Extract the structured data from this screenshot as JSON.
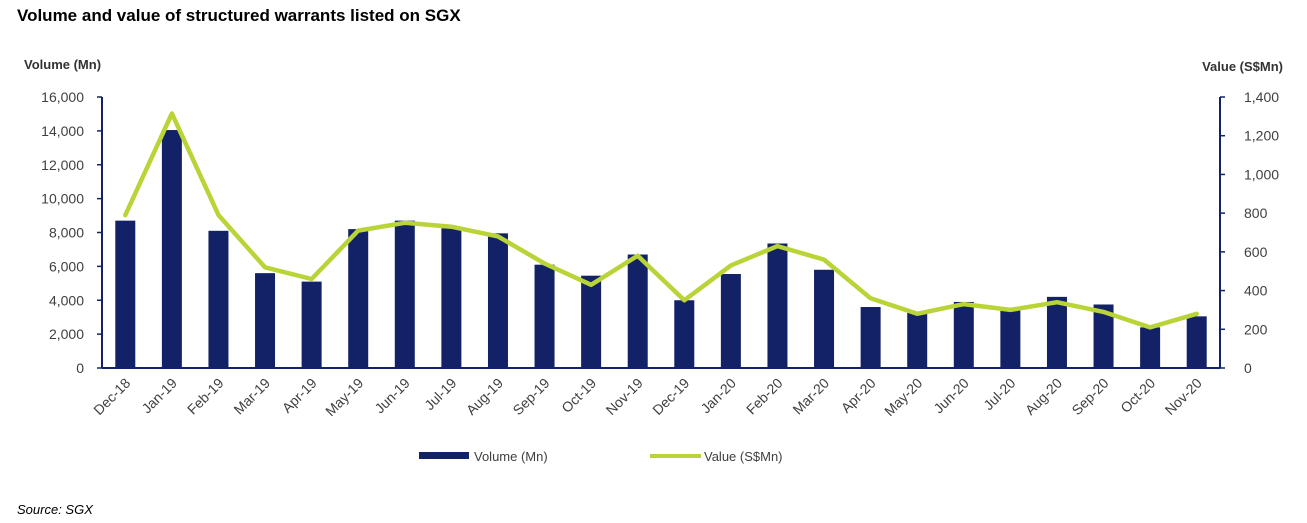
{
  "page": {
    "title": "Volume and value of structured warrants listed on SGX",
    "source": "Source: SGX"
  },
  "chart_data": {
    "type": "bar",
    "categories": [
      "Dec-18",
      "Jan-19",
      "Feb-19",
      "Mar-19",
      "Apr-19",
      "May-19",
      "Jun-19",
      "Jul-19",
      "Aug-19",
      "Sep-19",
      "Oct-19",
      "Nov-19",
      "Dec-19",
      "Jan-20",
      "Feb-20",
      "Mar-20",
      "Apr-20",
      "May-20",
      "Jun-20",
      "Jul-20",
      "Aug-20",
      "Sep-20",
      "Oct-20",
      "Nov-20"
    ],
    "series": [
      {
        "name": "Volume (Mn)",
        "type": "bar",
        "axis": "left",
        "color": "#132266",
        "values": [
          8700,
          14050,
          8100,
          5600,
          5100,
          8200,
          8700,
          8250,
          7950,
          6100,
          5450,
          6700,
          4000,
          5550,
          7350,
          5800,
          3600,
          3250,
          3900,
          3450,
          4200,
          3750,
          2400,
          3050
        ]
      },
      {
        "name": "Value (S$Mn)",
        "type": "line",
        "axis": "right",
        "color": "#b8d437",
        "values": [
          790,
          1315,
          790,
          520,
          460,
          710,
          750,
          730,
          680,
          540,
          430,
          580,
          350,
          530,
          630,
          560,
          360,
          280,
          330,
          300,
          340,
          290,
          210,
          280
        ]
      }
    ],
    "y_left": {
      "label": "Volume (Mn)",
      "min": 0,
      "max": 16000,
      "ticks": [
        0,
        2000,
        4000,
        6000,
        8000,
        10000,
        12000,
        14000,
        16000
      ],
      "tick_labels": [
        "0",
        "2,000",
        "4,000",
        "6,000",
        "8,000",
        "10,000",
        "12,000",
        "14,000",
        "16,000"
      ]
    },
    "y_right": {
      "label": "Value (S$Mn)",
      "min": 0,
      "max": 1400,
      "ticks": [
        0,
        200,
        400,
        600,
        800,
        1000,
        1200,
        1400
      ],
      "tick_labels": [
        "0",
        "200",
        "400",
        "600",
        "800",
        "1,000",
        "1,200",
        "1,400"
      ]
    },
    "grid": false,
    "legend_position": "bottom"
  }
}
